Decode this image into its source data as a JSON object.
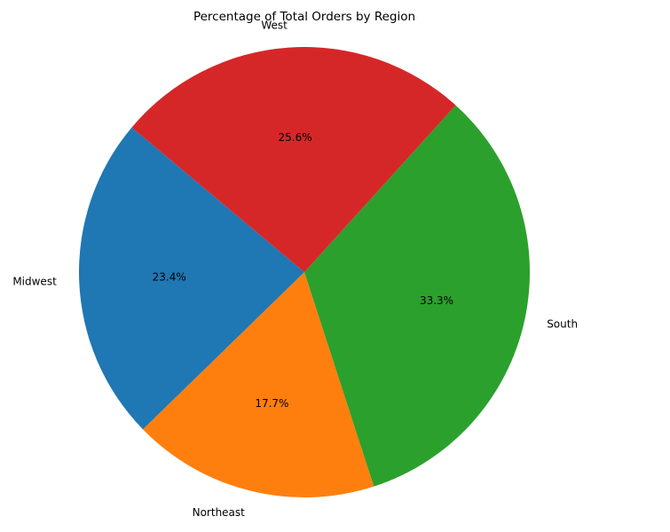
{
  "chart_data": {
    "type": "pie",
    "title": "Percentage of Total Orders by Region",
    "categories": [
      "Midwest",
      "Northeast",
      "South",
      "West"
    ],
    "values": [
      23.4,
      17.7,
      33.3,
      25.6
    ],
    "value_labels": [
      "23.4%",
      "17.7%",
      "33.3%",
      "25.6%"
    ],
    "colors": [
      "#1f77b4",
      "#ff7f0e",
      "#2ca02c",
      "#d62728"
    ],
    "start_angle_deg": 140,
    "direction": "counterclockwise",
    "legend": "none"
  }
}
